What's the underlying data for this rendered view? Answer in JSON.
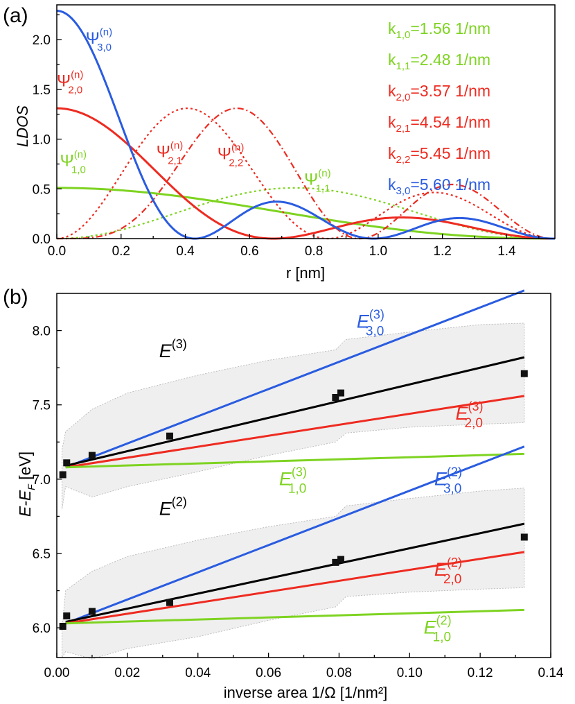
{
  "colors": {
    "green": "#7ed321",
    "red": "#ee2b21",
    "blue": "#2a5ce0",
    "black": "#000000",
    "band": "#efefef"
  },
  "chart_data": [
    {
      "type": "line",
      "panel": "(a)",
      "xlabel": "r [nm]",
      "ylabel": "LDOS",
      "xlim": [
        0,
        1.55
      ],
      "ylim": [
        0,
        2.35
      ],
      "xticks": [
        "0.0",
        "0.2",
        "0.4",
        "0.6",
        "0.8",
        "1.0",
        "1.2",
        "1.4"
      ],
      "yticks": [
        "0.0",
        "0.5",
        "1.0",
        "1.5",
        "2.0"
      ],
      "R": 1.55,
      "series": [
        {
          "name": "Psi_1,0",
          "k": 1.56,
          "l": 0,
          "amp": 0.51,
          "color": "green",
          "style": "solid"
        },
        {
          "name": "Psi_1,1",
          "k": 2.48,
          "l": 1,
          "amp": 0.51,
          "color": "green",
          "style": "dotted"
        },
        {
          "name": "Psi_2,0",
          "k": 3.57,
          "l": 0,
          "amp": 1.31,
          "color": "red",
          "style": "solid"
        },
        {
          "name": "Psi_2,1",
          "k": 4.54,
          "l": 1,
          "amp": 1.31,
          "color": "red",
          "style": "dotted"
        },
        {
          "name": "Psi_2,2",
          "k": 5.45,
          "l": 2,
          "amp": 1.31,
          "color": "red",
          "style": "dashdot"
        },
        {
          "name": "Psi_3,0",
          "k": 5.6,
          "l": 0,
          "amp": 2.29,
          "color": "blue",
          "style": "solid"
        }
      ],
      "curve_labels": [
        {
          "base": "Ψ",
          "sup": "(n)",
          "sub": "3,0",
          "color": "blue",
          "x": 0.09,
          "y": 1.96
        },
        {
          "base": "Ψ",
          "sup": "(n)",
          "sub": "2,0",
          "color": "red",
          "x": 0.0,
          "y": 1.53
        },
        {
          "base": "Ψ",
          "sup": "(n)",
          "sub": "1,0",
          "color": "green",
          "x": 0.01,
          "y": 0.73
        },
        {
          "base": "Ψ",
          "sup": "(n)",
          "sub": "2,1",
          "color": "red",
          "x": 0.31,
          "y": 0.82
        },
        {
          "base": "Ψ",
          "sup": "(n)",
          "sub": "2,2",
          "color": "red",
          "x": 0.5,
          "y": 0.8
        },
        {
          "base": "Ψ",
          "sup": "(n)",
          "sub": "1,1",
          "color": "green",
          "x": 0.77,
          "y": 0.54
        }
      ],
      "k_labels": [
        {
          "pre": "k",
          "sub": "1,0",
          "post": "=1.56 1/nm",
          "color": "green"
        },
        {
          "pre": "k",
          "sub": "1,1",
          "post": "=2.48 1/nm",
          "color": "green"
        },
        {
          "pre": "k",
          "sub": "2,0",
          "post": "=3.57 1/nm",
          "color": "red"
        },
        {
          "pre": "k",
          "sub": "2,1",
          "post": "=4.54 1/nm",
          "color": "red"
        },
        {
          "pre": "k",
          "sub": "2,2",
          "post": "=5.45 1/nm",
          "color": "red"
        },
        {
          "pre": "k",
          "sub": "3,0",
          "post": "=5.60 1/nm",
          "color": "blue"
        }
      ]
    },
    {
      "type": "scatter",
      "panel": "(b)",
      "xlabel": "inverse area 1/Ω [1/nm²]",
      "ylabel_main": "E-E",
      "ylabel_sub": "F",
      "ylabel_unit": " [eV]",
      "xlim": [
        0,
        0.14
      ],
      "ylim": [
        5.8,
        8.25
      ],
      "xticks": [
        "0.00",
        "0.02",
        "0.04",
        "0.06",
        "0.08",
        "0.10",
        "0.12",
        "0.14"
      ],
      "yticks": [
        "6.0",
        "6.5",
        "7.0",
        "7.5",
        "8.0"
      ],
      "bands": [
        {
          "x": [
            0.0015,
            0.0025,
            0.01,
            0.02,
            0.04,
            0.06,
            0.079,
            0.082,
            0.1,
            0.12,
            0.1325
          ],
          "upper": [
            7.2,
            7.32,
            7.47,
            7.58,
            7.7,
            7.8,
            7.87,
            7.94,
            7.99,
            8.04,
            8.05
          ],
          "lower": [
            6.8,
            6.95,
            6.88,
            6.95,
            7.05,
            7.16,
            7.25,
            7.31,
            7.35,
            7.37,
            7.38
          ]
        },
        {
          "x": [
            0.0015,
            0.0025,
            0.01,
            0.02,
            0.04,
            0.06,
            0.079,
            0.082,
            0.1,
            0.12,
            0.1325
          ],
          "upper": [
            6.0,
            6.25,
            6.38,
            6.48,
            6.59,
            6.68,
            6.75,
            6.82,
            6.87,
            6.92,
            6.94
          ],
          "lower": [
            5.8,
            5.84,
            5.79,
            5.86,
            5.94,
            6.05,
            6.14,
            6.21,
            6.24,
            6.26,
            6.27
          ]
        }
      ],
      "lines": [
        {
          "name": "E_3,0 (3)",
          "color": "blue",
          "x": [
            0.0025,
            0.1325
          ],
          "y": [
            7.08,
            8.27
          ]
        },
        {
          "name": "E (3)",
          "color": "black",
          "x": [
            0.0025,
            0.1325
          ],
          "y": [
            7.09,
            7.82
          ]
        },
        {
          "name": "E_2,0 (3)",
          "color": "red",
          "x": [
            0.0025,
            0.1325
          ],
          "y": [
            7.08,
            7.56
          ]
        },
        {
          "name": "E_1,0 (3)",
          "color": "green",
          "x": [
            0.0025,
            0.1325
          ],
          "y": [
            7.08,
            7.17
          ]
        },
        {
          "name": "E_3,0 (2)",
          "color": "blue",
          "x": [
            0.0025,
            0.1325
          ],
          "y": [
            6.03,
            7.22
          ]
        },
        {
          "name": "E (2)",
          "color": "black",
          "x": [
            0.0025,
            0.1325
          ],
          "y": [
            6.04,
            6.7
          ]
        },
        {
          "name": "E_2,0 (2)",
          "color": "red",
          "x": [
            0.0025,
            0.1325
          ],
          "y": [
            6.03,
            6.51
          ]
        },
        {
          "name": "E_1,0 (2)",
          "color": "green",
          "x": [
            0.0025,
            0.1325
          ],
          "y": [
            6.03,
            6.12
          ]
        }
      ],
      "points": [
        {
          "x": 0.0017,
          "y": 7.03
        },
        {
          "x": 0.0028,
          "y": 7.11
        },
        {
          "x": 0.01,
          "y": 7.16
        },
        {
          "x": 0.032,
          "y": 7.29
        },
        {
          "x": 0.079,
          "y": 7.55
        },
        {
          "x": 0.0805,
          "y": 7.58
        },
        {
          "x": 0.1325,
          "y": 7.71
        },
        {
          "x": 0.0017,
          "y": 6.01
        },
        {
          "x": 0.0028,
          "y": 6.08
        },
        {
          "x": 0.01,
          "y": 6.11
        },
        {
          "x": 0.032,
          "y": 6.17
        },
        {
          "x": 0.079,
          "y": 6.44
        },
        {
          "x": 0.0805,
          "y": 6.46
        },
        {
          "x": 0.1325,
          "y": 6.61
        }
      ],
      "labels": [
        {
          "base": "E",
          "sup": "(3)",
          "sub": "3,0",
          "color": "blue",
          "x": 0.085,
          "y": 8.02
        },
        {
          "base": "E",
          "sup": "(3)",
          "sub": "",
          "color": "black",
          "x": 0.029,
          "y": 7.82
        },
        {
          "base": "E",
          "sup": "(3)",
          "sub": "2,0",
          "color": "red",
          "x": 0.113,
          "y": 7.4
        },
        {
          "base": "E",
          "sup": "(3)",
          "sub": "1,0",
          "color": "green",
          "x": 0.063,
          "y": 6.96
        },
        {
          "base": "E",
          "sup": "(2)",
          "sub": "3,0",
          "color": "blue",
          "x": 0.107,
          "y": 6.96
        },
        {
          "base": "E",
          "sup": "(2)",
          "sub": "",
          "color": "black",
          "x": 0.029,
          "y": 6.76
        },
        {
          "base": "E",
          "sup": "(2)",
          "sub": "2,0",
          "color": "red",
          "x": 0.107,
          "y": 6.35
        },
        {
          "base": "E",
          "sup": "(2)",
          "sub": "1,0",
          "color": "green",
          "x": 0.104,
          "y": 5.96
        }
      ]
    }
  ]
}
